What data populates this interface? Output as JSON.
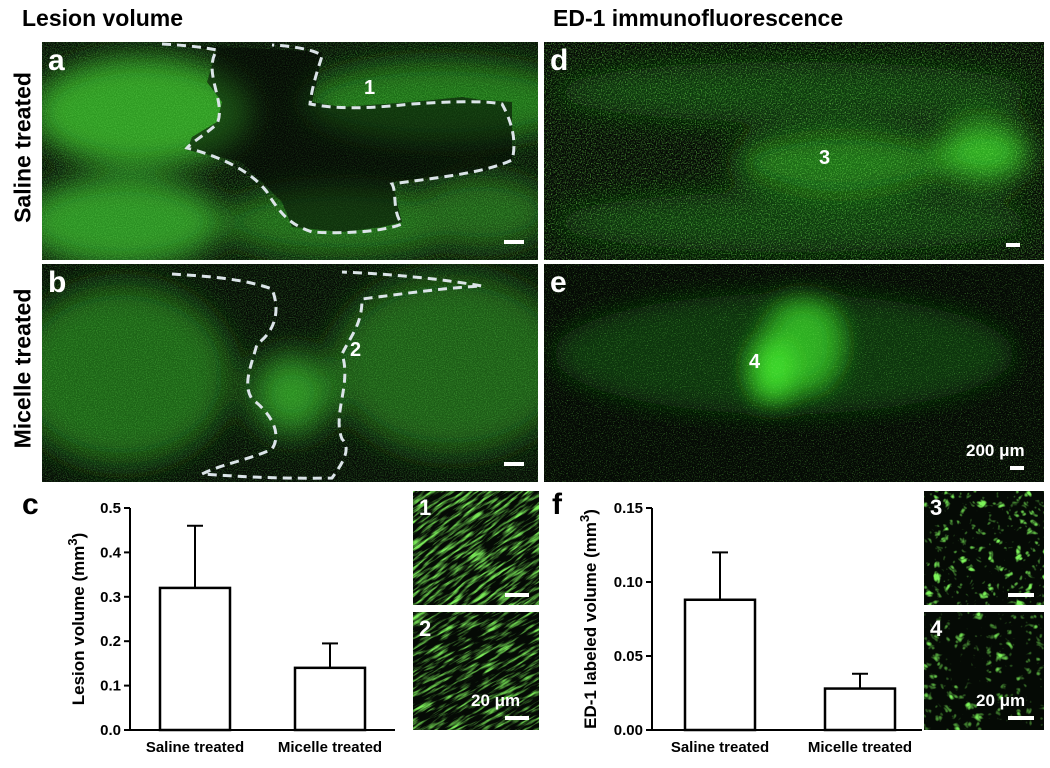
{
  "headers": {
    "left": "Lesion volume",
    "right": "ED-1 immunofluorescence"
  },
  "row_labels": {
    "saline": "Saline treated",
    "micelle": "Micelle treated"
  },
  "panels": {
    "a": {
      "label": "a",
      "region": "1"
    },
    "b": {
      "label": "b",
      "region": "2"
    },
    "d": {
      "label": "d",
      "region": "3"
    },
    "e": {
      "label": "e",
      "region": "4",
      "scale": "200 μm"
    }
  },
  "insets": {
    "i1": {
      "label": "1"
    },
    "i2": {
      "label": "2",
      "scale": "20 μm"
    },
    "i3": {
      "label": "3"
    },
    "i4": {
      "label": "4",
      "scale": "20 μm"
    }
  },
  "chart_labels": {
    "c": "c",
    "f": "f"
  },
  "colors": {
    "fluor": "#3ddc2a",
    "background": "#050a05",
    "outline": "#dbe4e8"
  },
  "chart_data": [
    {
      "id": "c",
      "type": "bar",
      "categories": [
        "Saline treated",
        "Micelle treated"
      ],
      "values": [
        0.32,
        0.14
      ],
      "errors": [
        0.14,
        0.055
      ],
      "ylabel": "Lesion volume (mm3)",
      "ylim": [
        0,
        0.5
      ],
      "yticks": [
        "0.0",
        "0.1",
        "0.2",
        "0.3",
        "0.4",
        "0.5"
      ]
    },
    {
      "id": "f",
      "type": "bar",
      "categories": [
        "Saline treated",
        "Micelle treated"
      ],
      "values": [
        0.088,
        0.028
      ],
      "errors": [
        0.032,
        0.01
      ],
      "ylabel": "ED-1 labeled volume (mm3)",
      "ylim": [
        0,
        0.15
      ],
      "yticks": [
        "0.00",
        "0.05",
        "0.10",
        "0.15"
      ]
    }
  ]
}
